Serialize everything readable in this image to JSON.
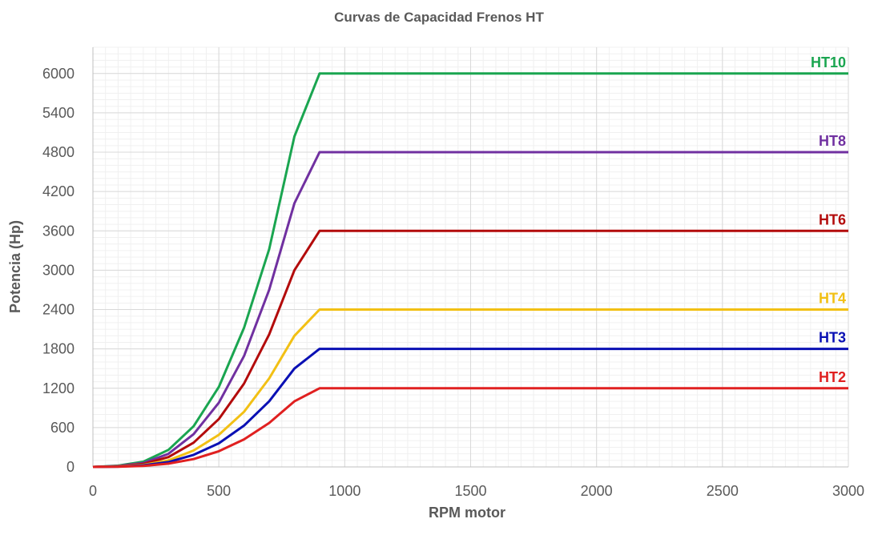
{
  "chart_data": {
    "type": "line",
    "title": "Curvas de Capacidad Frenos HT",
    "xlabel": "RPM motor",
    "ylabel": "Potencia (Hp)",
    "xlim": [
      0,
      3000
    ],
    "ylim": [
      0,
      6400
    ],
    "xticks": [
      0,
      500,
      1000,
      1500,
      2000,
      2500,
      3000
    ],
    "yticks": [
      0,
      600,
      1200,
      1800,
      2400,
      3000,
      3600,
      4200,
      4800,
      5400,
      6000
    ],
    "grid": true,
    "legend": "none",
    "series": [
      {
        "name": "HT10",
        "color": "#1aa550",
        "x": [
          0,
          100,
          200,
          300,
          400,
          500,
          600,
          700,
          800,
          900,
          3000
        ],
        "y": [
          0,
          20,
          80,
          260,
          620,
          1220,
          2120,
          3320,
          5040,
          6000,
          6000
        ]
      },
      {
        "name": "HT8",
        "color": "#7030a0",
        "x": [
          0,
          100,
          200,
          300,
          400,
          500,
          600,
          700,
          800,
          900,
          3000
        ],
        "y": [
          0,
          15,
          60,
          200,
          500,
          980,
          1690,
          2700,
          4020,
          4800,
          4800
        ]
      },
      {
        "name": "HT6",
        "color": "#b30b0b",
        "x": [
          0,
          100,
          200,
          300,
          400,
          500,
          600,
          700,
          800,
          900,
          3000
        ],
        "y": [
          0,
          10,
          45,
          150,
          370,
          730,
          1270,
          2020,
          3000,
          3600,
          3600
        ]
      },
      {
        "name": "HT4",
        "color": "#f2c014",
        "x": [
          0,
          100,
          200,
          300,
          400,
          500,
          600,
          700,
          800,
          900,
          3000
        ],
        "y": [
          0,
          8,
          30,
          100,
          250,
          490,
          840,
          1350,
          2000,
          2400,
          2400
        ]
      },
      {
        "name": "HT3",
        "color": "#0a10b4",
        "x": [
          0,
          100,
          200,
          300,
          400,
          500,
          600,
          700,
          800,
          900,
          3000
        ],
        "y": [
          0,
          5,
          25,
          75,
          185,
          360,
          630,
          1000,
          1500,
          1800,
          1800
        ]
      },
      {
        "name": "HT2",
        "color": "#e02020",
        "x": [
          0,
          100,
          200,
          300,
          400,
          500,
          600,
          700,
          800,
          900,
          3000
        ],
        "y": [
          0,
          3,
          15,
          50,
          120,
          240,
          420,
          670,
          1000,
          1200,
          1200
        ]
      }
    ]
  }
}
